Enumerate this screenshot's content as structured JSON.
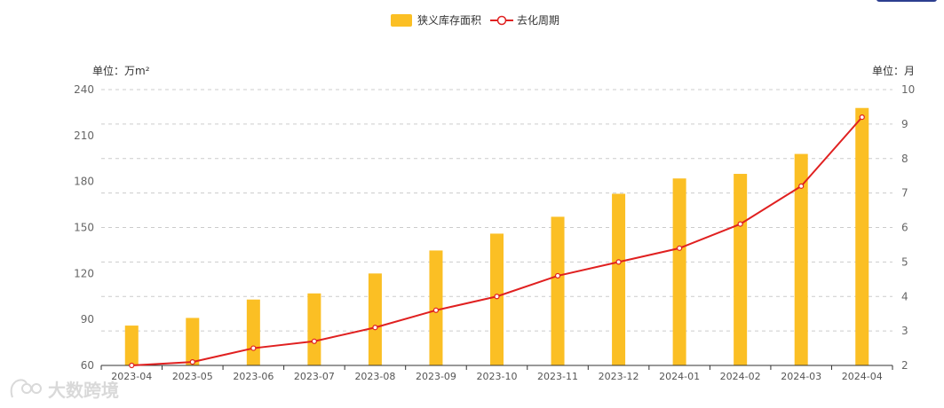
{
  "chart_data": {
    "type": "bar+line",
    "categories": [
      "2023-04",
      "2023-05",
      "2023-06",
      "2023-07",
      "2023-08",
      "2023-09",
      "2023-10",
      "2023-11",
      "2023-12",
      "2024-01",
      "2024-02",
      "2024-03",
      "2024-04"
    ],
    "series": [
      {
        "name": "狭义库存面积",
        "type": "bar",
        "axis": "left",
        "values": [
          86,
          91,
          103,
          107,
          120,
          135,
          146,
          157,
          172,
          182,
          185,
          198,
          228
        ],
        "color": "#FBBF24"
      },
      {
        "name": "去化周期",
        "type": "line",
        "axis": "right",
        "values": [
          2.0,
          2.1,
          2.5,
          2.7,
          3.1,
          3.6,
          4.0,
          4.6,
          5.0,
          5.4,
          6.1,
          7.2,
          9.2
        ],
        "color": "#E02020"
      }
    ],
    "left_axis": {
      "unit_label": "单位：万m²",
      "ylim": [
        60,
        240
      ],
      "ticks": [
        "60",
        "90",
        "120",
        "150",
        "180",
        "210",
        "240"
      ]
    },
    "right_axis": {
      "unit_label": "单位：月",
      "ylim": [
        2,
        10
      ],
      "ticks": [
        "2",
        "3",
        "4",
        "5",
        "6",
        "7",
        "8",
        "9",
        "10"
      ]
    },
    "legend": {
      "position": "top-center",
      "items": [
        "狭义库存面积",
        "去化周期"
      ]
    }
  },
  "watermark": {
    "text": "大数跨境"
  }
}
